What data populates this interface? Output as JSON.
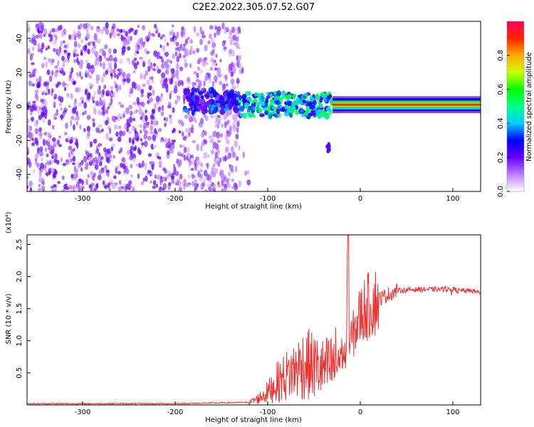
{
  "title": "C2E2.2022.305.07.52.G07",
  "chart_data": [
    {
      "type": "heatmap",
      "name": "spectrogram",
      "xlabel": "Height of straight line (km)",
      "ylabel": "Frequency (Hz)",
      "xlim": [
        -360,
        130
      ],
      "ylim": [
        -50,
        50
      ],
      "xticks": [
        -300,
        -200,
        -100,
        0,
        100
      ],
      "yticks": [
        -40,
        -20,
        0,
        20,
        40
      ],
      "colorbar": {
        "label": "Normalized spectral amplitude",
        "range": [
          0.0,
          1.0
        ],
        "ticks": [
          0.0,
          0.2,
          0.4,
          0.6,
          0.8
        ]
      },
      "regions": [
        {
          "description": "broadband noise",
          "x_range": [
            -360,
            -130
          ],
          "freq_range": [
            -50,
            48
          ],
          "amplitude": 0.1
        },
        {
          "description": "transition",
          "x_range": [
            -190,
            -130
          ],
          "freq_range": [
            -4,
            10
          ],
          "amplitude": 0.3
        },
        {
          "description": "signal onset",
          "x_range": [
            -130,
            -30
          ],
          "freq_range": [
            -6,
            8
          ],
          "amplitude": 0.45
        },
        {
          "description": "stable tone",
          "x_range": [
            -30,
            130
          ],
          "freq_range": [
            -1,
            3
          ],
          "amplitude": 0.9
        }
      ]
    },
    {
      "type": "line",
      "name": "snr",
      "xlabel": "Height of straight line (km)",
      "ylabel": "SNR (10 * v/v)",
      "yscale_label": "(x10⁴)",
      "xlim": [
        -360,
        130
      ],
      "ylim": [
        0,
        2.65
      ],
      "xticks": [
        -300,
        -200,
        -100,
        0,
        100
      ],
      "yticks": [
        0.5,
        1.0,
        1.5,
        2.0,
        2.5
      ],
      "ytick_labels": [
        "0.5",
        "1.0",
        "1.5",
        "2.0",
        "2.5"
      ],
      "color": "#ee3333",
      "series": [
        {
          "name": "SNR",
          "x": [
            -360,
            -200,
            -120,
            -110,
            -100,
            -90,
            -80,
            -70,
            -60,
            -50,
            -40,
            -30,
            -20,
            -15,
            -13,
            -12,
            -10,
            -5,
            0,
            5,
            10,
            15,
            20,
            30,
            40,
            60,
            80,
            100,
            110,
            120,
            130
          ],
          "values": [
            0.02,
            0.02,
            0.04,
            0.1,
            0.2,
            0.35,
            0.45,
            0.55,
            0.65,
            0.6,
            0.55,
            0.6,
            0.8,
            0.75,
            2.65,
            0.9,
            1.0,
            1.2,
            1.4,
            1.5,
            1.55,
            1.6,
            1.65,
            1.72,
            1.78,
            1.8,
            1.8,
            1.8,
            1.78,
            1.78,
            1.75
          ]
        }
      ]
    }
  ]
}
